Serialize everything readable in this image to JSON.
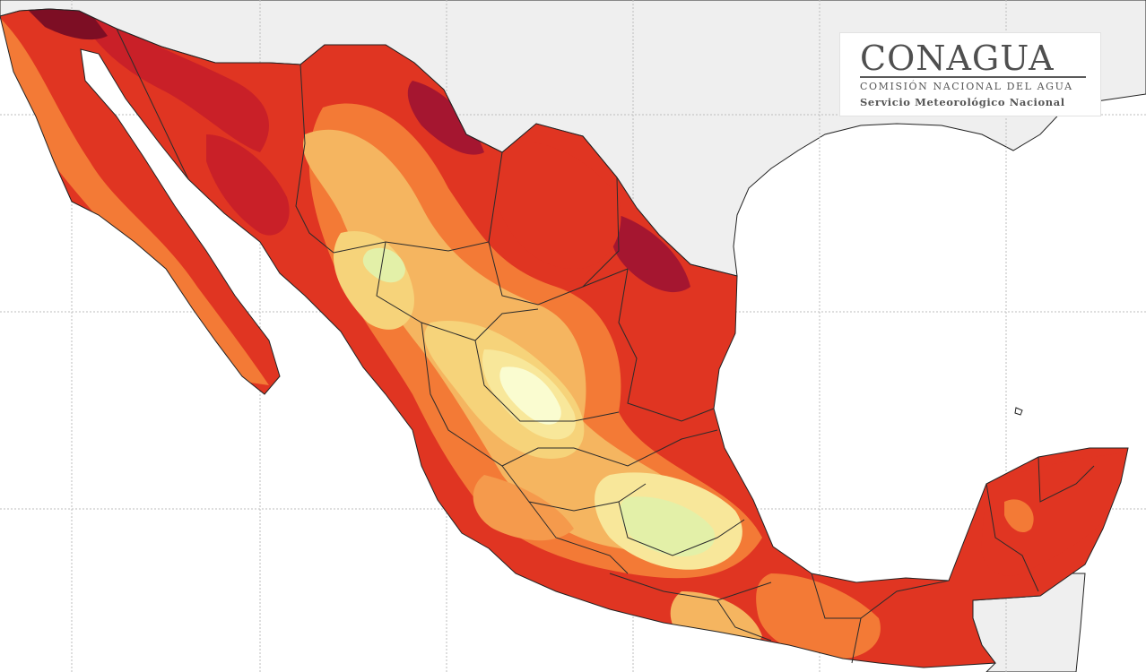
{
  "map": {
    "region": "Mexico",
    "graticule": true,
    "colors": {
      "background_sea": "#ffffff",
      "foreign_land": "#efefef",
      "coast_line": "#222222",
      "state_border": "#2b2b2b",
      "graticule_line": "#bdbdbd",
      "color_scale": [
        "#fafcd0",
        "#e3f0a8",
        "#f8e79a",
        "#f6d37a",
        "#f5b560",
        "#f59a4c",
        "#f37a36",
        "#ef5a2a",
        "#e03522",
        "#c92028",
        "#a51630",
        "#7d0e24"
      ]
    }
  },
  "logo": {
    "title": "CONAGUA",
    "subtitle": "COMISIÓN NACIONAL DEL AGUA",
    "service": "Servicio Meteorológico Nacional"
  }
}
